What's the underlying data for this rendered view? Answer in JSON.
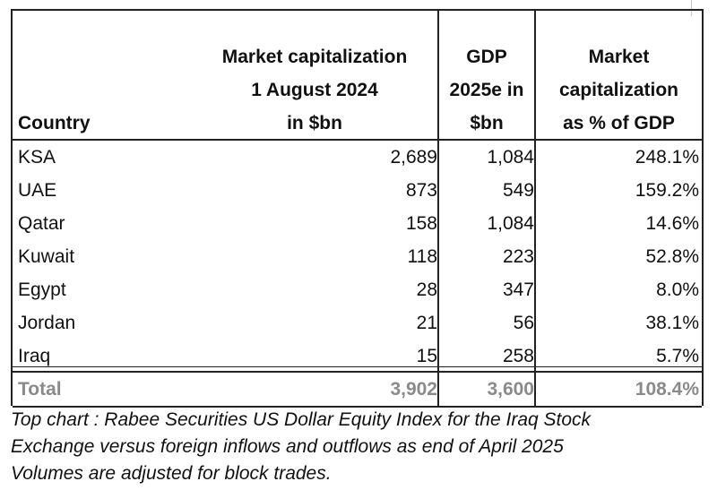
{
  "table": {
    "headers": {
      "country": "Country",
      "market_cap": [
        "Market capitalization",
        "1 August 2024",
        "in $bn"
      ],
      "gdp": [
        "GDP",
        "2025e in",
        "$bn"
      ],
      "pct": [
        "Market",
        "capitalization",
        "as % of GDP"
      ]
    },
    "rows": [
      {
        "country": "KSA",
        "market_cap": "2,689",
        "gdp": "1,084",
        "pct": "248.1%"
      },
      {
        "country": "UAE",
        "market_cap": "873",
        "gdp": "549",
        "pct": "159.2%"
      },
      {
        "country": "Qatar",
        "market_cap": "158",
        "gdp": "1,084",
        "pct": "14.6%"
      },
      {
        "country": "Kuwait",
        "market_cap": "118",
        "gdp": "223",
        "pct": "52.8%"
      },
      {
        "country": "Egypt",
        "market_cap": "28",
        "gdp": "347",
        "pct": "8.0%"
      },
      {
        "country": "Jordan",
        "market_cap": "21",
        "gdp": "56",
        "pct": "38.1%"
      },
      {
        "country": "Iraq",
        "market_cap": "15",
        "gdp": "258",
        "pct": "5.7%"
      }
    ],
    "total": {
      "country": "Total",
      "market_cap": "3,902",
      "gdp": "3,600",
      "pct": "108.4%"
    }
  },
  "caption": [
    "Top chart : Rabee Securities US Dollar Equity Index for the Iraq Stock",
    "Exchange  versus foreign inflows and outflows as end of April 2025",
    "Volumes are adjusted for block trades."
  ]
}
